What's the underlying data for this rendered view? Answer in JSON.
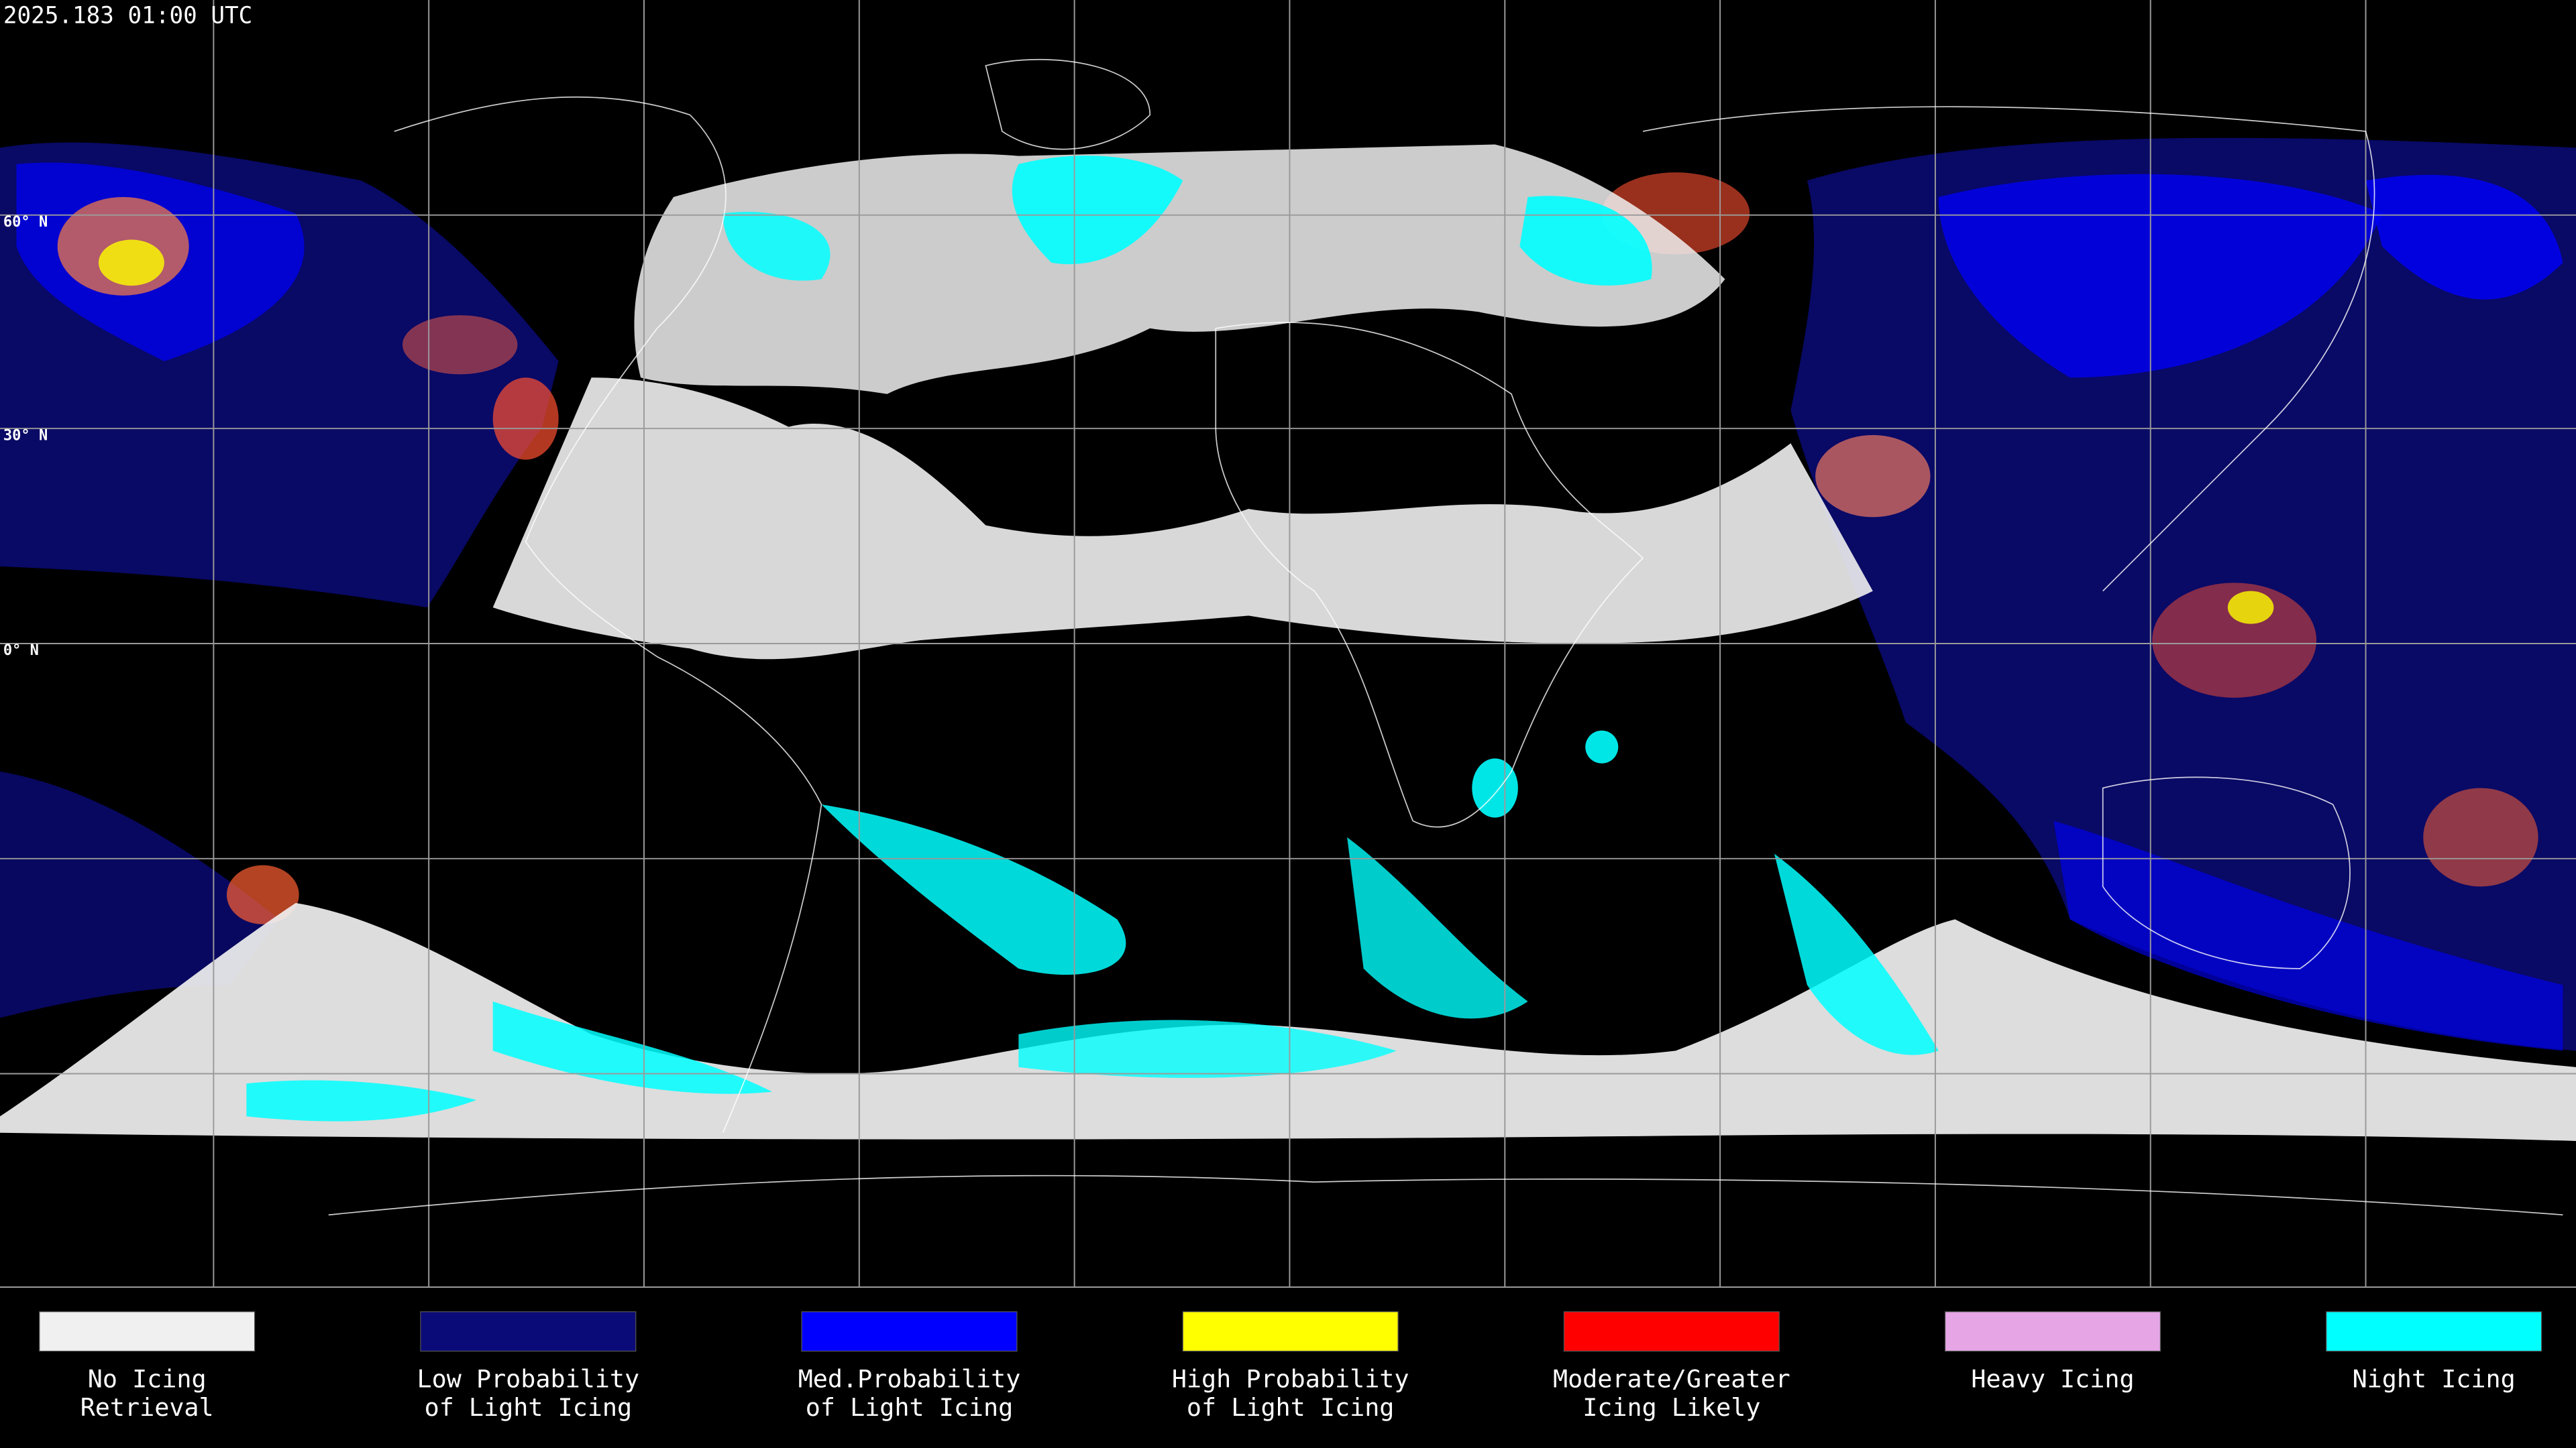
{
  "header": {
    "timestamp": "2025.183 01:00 UTC"
  },
  "map": {
    "latitude_labels": [
      "60° N",
      "30° N",
      "0° N"
    ]
  },
  "legend": {
    "items": [
      {
        "lines": [
          "No Icing",
          "Retrieval"
        ],
        "color": "#f0f0f0"
      },
      {
        "lines": [
          "Low Probability",
          "of Light Icing"
        ],
        "color": "#0a0a78"
      },
      {
        "lines": [
          "Med.Probability",
          "of Light Icing"
        ],
        "color": "#0000ff"
      },
      {
        "lines": [
          "High Probability",
          "of Light Icing"
        ],
        "color": "#ffff00"
      },
      {
        "lines": [
          "Moderate/Greater",
          "Icing Likely"
        ],
        "color": "#ff0000"
      },
      {
        "lines": [
          "Heavy Icing"
        ],
        "color": "#e6a6e6"
      },
      {
        "lines": [
          "Night Icing"
        ],
        "color": "#00ffff"
      }
    ]
  }
}
